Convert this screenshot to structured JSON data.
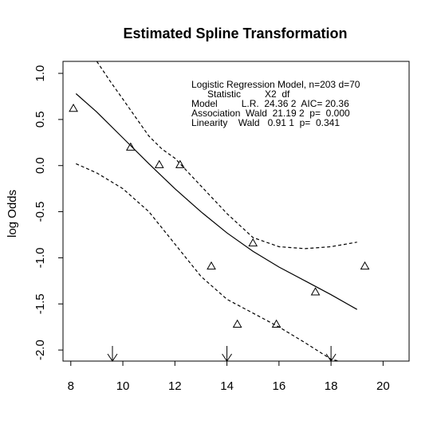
{
  "chart_data": {
    "type": "line",
    "title": "Estimated Spline Transformation",
    "xlabel": "",
    "ylabel": "log Odds",
    "xlim": [
      7.7,
      21.0
    ],
    "ylim": [
      -2.12,
      1.13
    ],
    "xticks": [
      8,
      10,
      12,
      14,
      16,
      18,
      20
    ],
    "yticks": [
      -2.0,
      -1.5,
      -1.0,
      -0.5,
      0.0,
      0.5,
      1.0
    ],
    "xtick_labels": [
      "8",
      "10",
      "12",
      "14",
      "16",
      "18",
      "20"
    ],
    "ytick_labels": [
      "-2.0",
      "-1.5",
      "-1.0",
      "-0.5",
      "0.0",
      "0.5",
      "1.0"
    ],
    "series": [
      {
        "style": "solid",
        "x": [
          8.2,
          9,
          10,
          11,
          12,
          13,
          14,
          15,
          16,
          17,
          18,
          19
        ],
        "y": [
          0.78,
          0.58,
          0.3,
          0.02,
          -0.25,
          -0.5,
          -0.73,
          -0.93,
          -1.1,
          -1.25,
          -1.4,
          -1.56
        ]
      },
      {
        "style": "dashed",
        "x": [
          9.0,
          9.5,
          10,
          10.5,
          11,
          11.5,
          12,
          13,
          14,
          15,
          16,
          17,
          18,
          19
        ],
        "y": [
          1.13,
          0.92,
          0.72,
          0.52,
          0.32,
          0.18,
          0.08,
          -0.22,
          -0.52,
          -0.78,
          -0.88,
          -0.9,
          -0.88,
          -0.83
        ]
      },
      {
        "style": "dashed",
        "x": [
          8.2,
          9,
          10,
          11,
          12,
          13,
          14,
          15,
          16,
          17,
          18,
          18.3
        ],
        "y": [
          0.02,
          -0.08,
          -0.25,
          -0.5,
          -0.85,
          -1.2,
          -1.45,
          -1.6,
          -1.75,
          -1.92,
          -2.1,
          -2.12
        ]
      }
    ],
    "points": [
      {
        "x": 8.1,
        "y": 0.62
      },
      {
        "x": 10.3,
        "y": 0.2
      },
      {
        "x": 11.4,
        "y": 0.01
      },
      {
        "x": 12.2,
        "y": 0.01
      },
      {
        "x": 13.4,
        "y": -1.09
      },
      {
        "x": 14.4,
        "y": -1.72
      },
      {
        "x": 15.0,
        "y": -0.84
      },
      {
        "x": 15.9,
        "y": -1.72
      },
      {
        "x": 17.4,
        "y": -1.37
      },
      {
        "x": 19.3,
        "y": -1.09
      }
    ],
    "knot_arrows_x": [
      9.6,
      14.0,
      18.0
    ],
    "annotations": [
      "Logistic Regression Model, n=203 d=70",
      "      Statistic         X2  df",
      "Model         L.R.  24.36 2  AIC= 20.36",
      "Association  Wald  21.19 2  p=  0.000",
      "Linearity    Wald   0.91 1  p=  0.341"
    ]
  }
}
